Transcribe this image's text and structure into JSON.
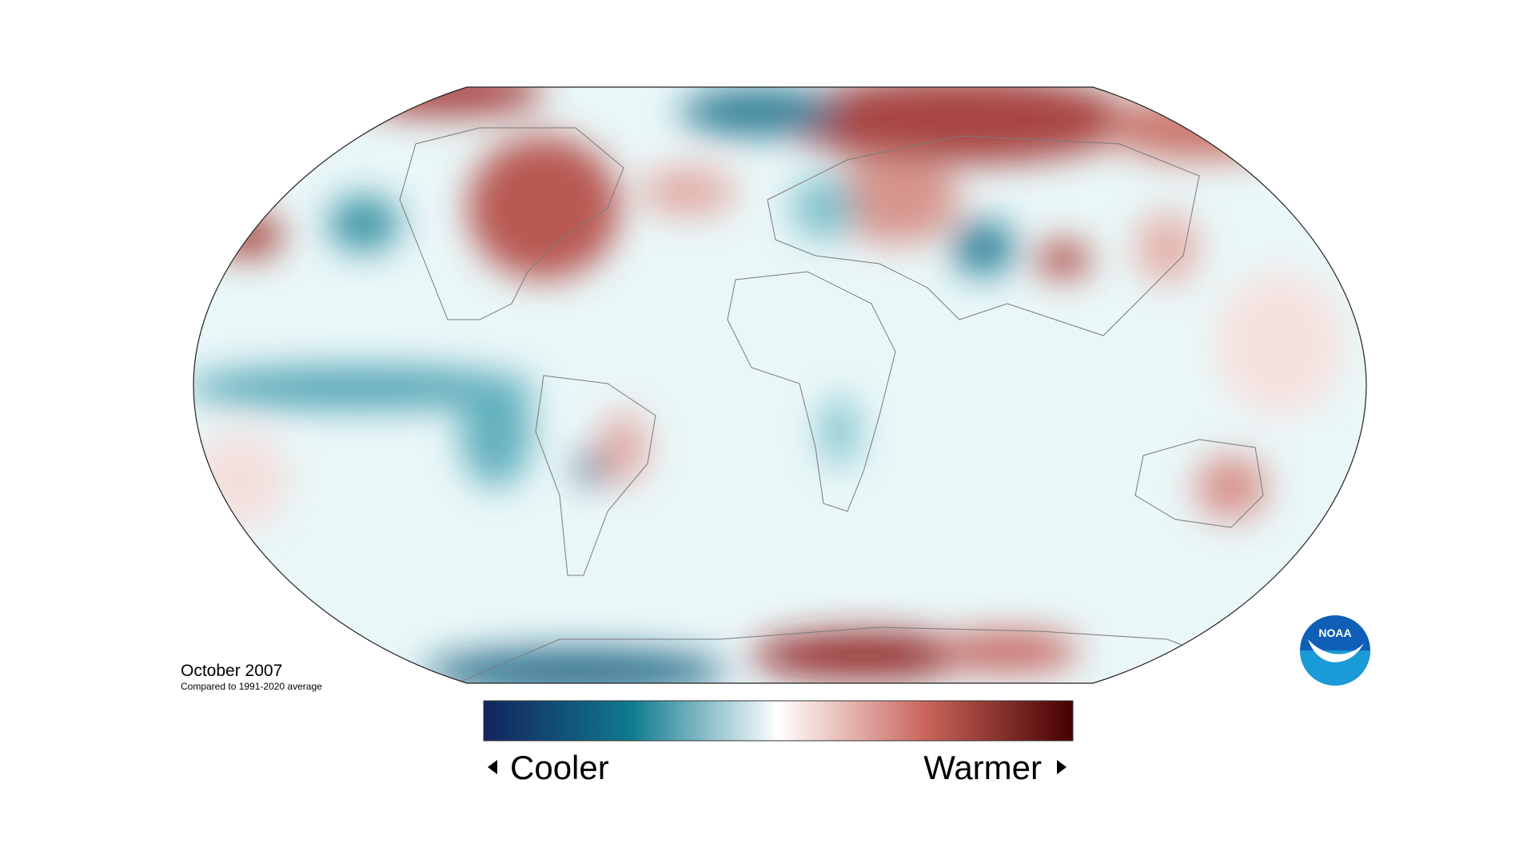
{
  "map": {
    "title": "October 2007",
    "subtitle": "Compared to 1991-2020 average"
  },
  "colorbar": {
    "low_label": "Cooler",
    "high_label": "Warmer",
    "colors": [
      "#13245e",
      "#0f7a8f",
      "#ffffff",
      "#c9655b",
      "#450000"
    ]
  },
  "logo": {
    "text": "NOAA"
  }
}
